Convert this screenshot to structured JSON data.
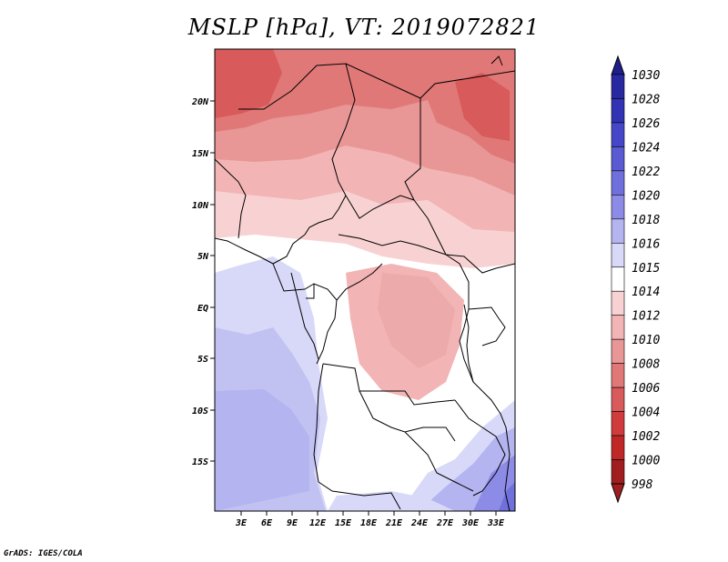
{
  "title": "MSLP [hPa], VT: 2019072821",
  "footer": "GrADS: IGES/COLA",
  "map": {
    "lon_labels": [
      "3E",
      "6E",
      "9E",
      "12E",
      "15E",
      "18E",
      "21E",
      "24E",
      "27E",
      "30E",
      "33E"
    ],
    "lat_labels": [
      "20N",
      "15N",
      "10N",
      "5N",
      "EQ",
      "5S",
      "10S",
      "15S"
    ]
  },
  "colorbar": {
    "levels": [
      "1030",
      "1028",
      "1026",
      "1024",
      "1022",
      "1020",
      "1018",
      "1016",
      "1015",
      "1014",
      "1012",
      "1010",
      "1008",
      "1006",
      "1004",
      "1002",
      "1000",
      "998"
    ],
    "colors": [
      "#1e1e8c",
      "#2828a0",
      "#3232b4",
      "#4646c8",
      "#5a5ad2",
      "#7070dc",
      "#8c8ce6",
      "#b4b4f0",
      "#d8d8f8",
      "#ffffff",
      "#f8d2d2",
      "#f2b4b4",
      "#e89696",
      "#e07878",
      "#d85a5a",
      "#d03c3c",
      "#c02828",
      "#a01e1e"
    ]
  }
}
